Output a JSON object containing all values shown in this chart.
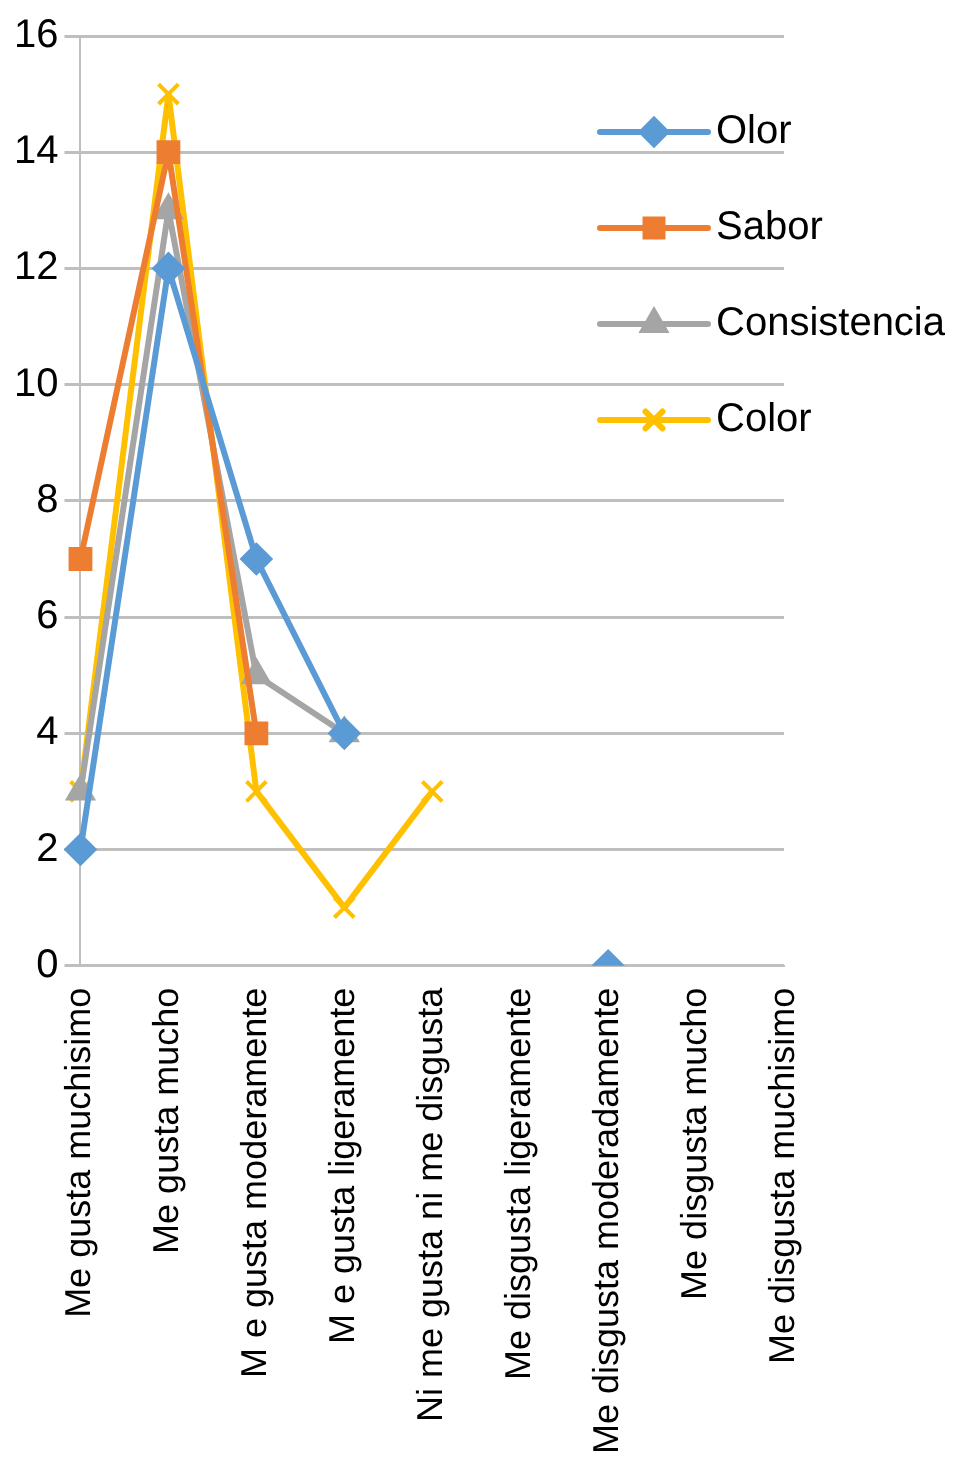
{
  "chart_data": {
    "type": "line",
    "categories": [
      "Me gusta muchisimo",
      "Me gusta mucho",
      "M e gusta moderamente",
      "M e gusta ligeramente",
      "Ni me gusta ni me disgusta",
      "Me disgusta ligeramente",
      "Me disgusta moderadamente",
      "Me disgusta mucho",
      "Me disgusta muchisimo"
    ],
    "series": [
      {
        "name": "Olor",
        "color": "#5b9bd5",
        "marker": "diamond",
        "values": [
          2,
          12,
          7,
          4,
          null,
          null,
          0,
          null,
          null
        ]
      },
      {
        "name": "Sabor",
        "color": "#ed7d31",
        "marker": "square",
        "values": [
          7,
          14,
          4,
          null,
          null,
          null,
          null,
          null,
          null
        ]
      },
      {
        "name": "Consistencia",
        "color": "#a5a5a5",
        "marker": "triangle",
        "values": [
          3,
          13,
          5,
          4,
          null,
          null,
          null,
          null,
          null
        ]
      },
      {
        "name": "Color",
        "color": "#ffc000",
        "marker": "cross",
        "values": [
          3,
          15,
          3,
          1,
          3,
          null,
          null,
          null,
          null
        ]
      }
    ],
    "ylim": [
      0,
      16
    ],
    "yticks": [
      0,
      2,
      4,
      6,
      8,
      10,
      12,
      14,
      16
    ],
    "grid": "y",
    "legend": "right",
    "line_style": "solid"
  }
}
